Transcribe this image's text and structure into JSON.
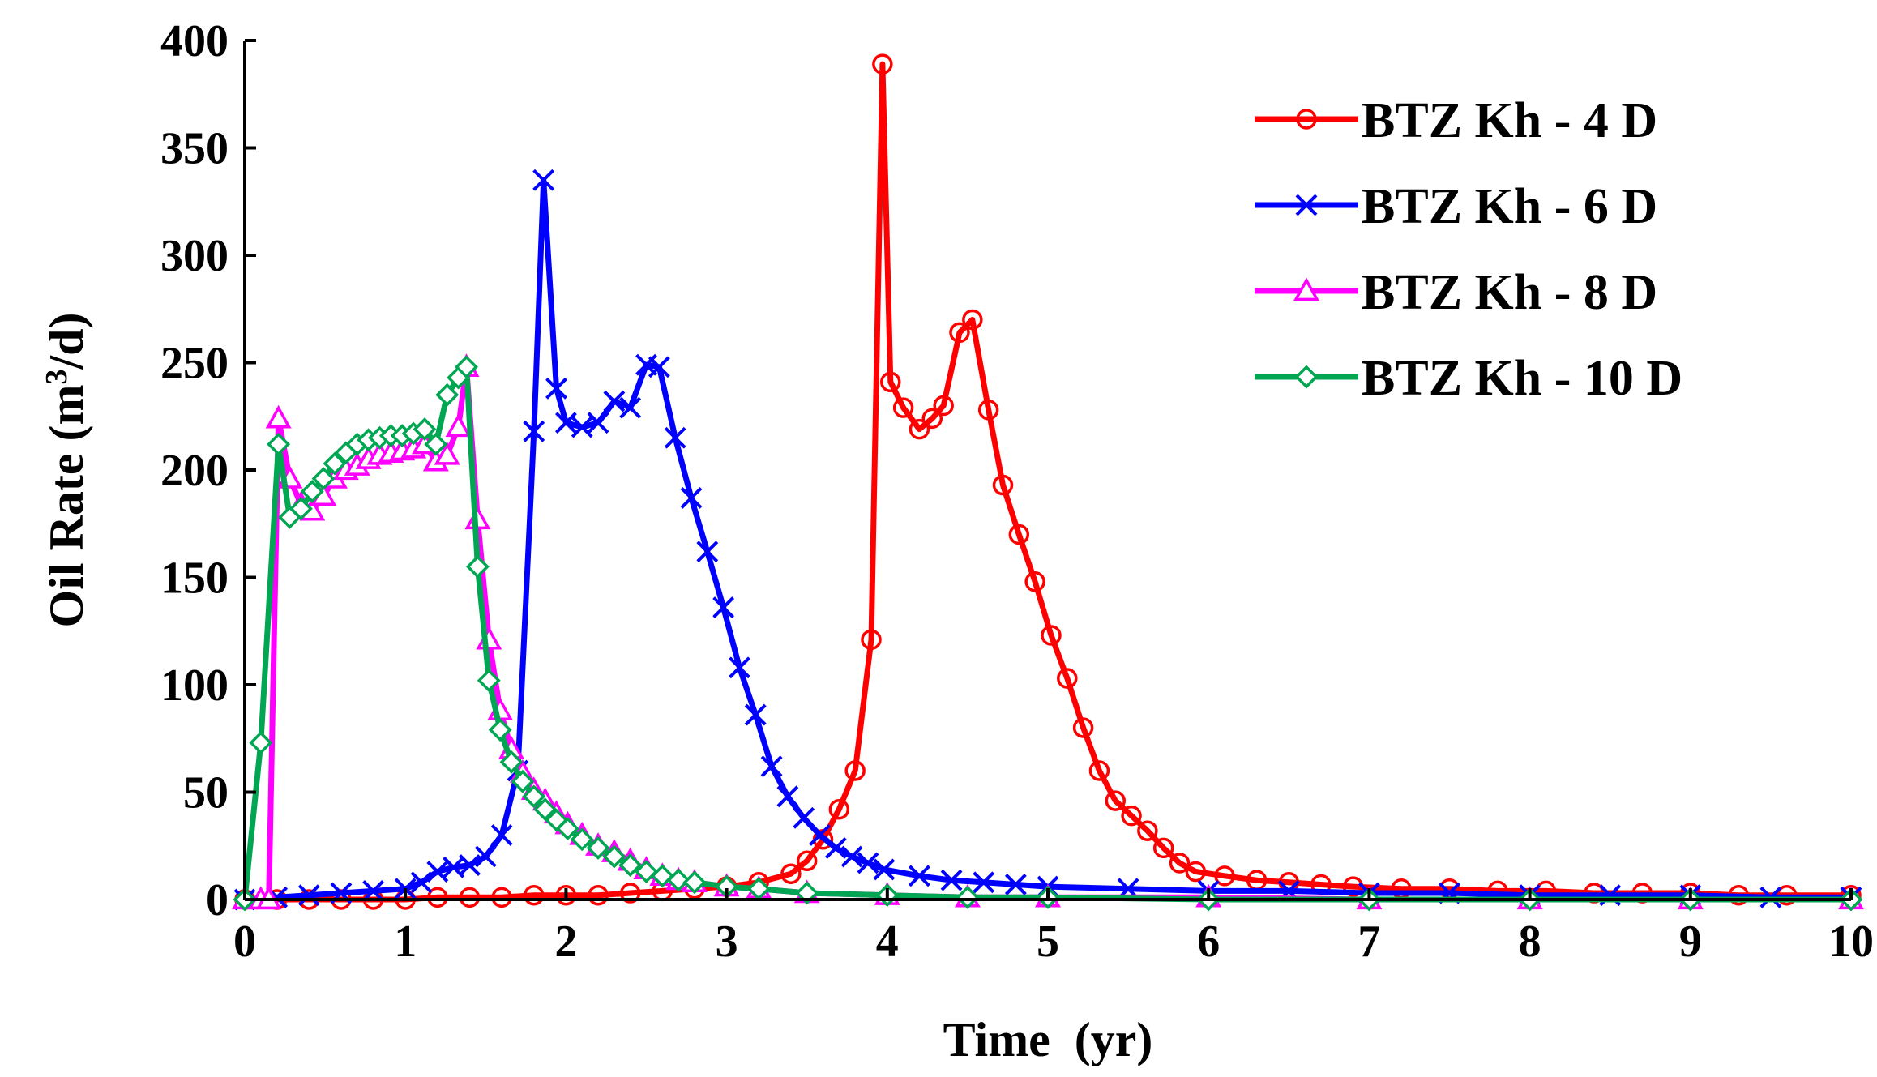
{
  "chart_data": {
    "type": "line",
    "title": "",
    "xlabel": "Time  (yr)",
    "ylabel_main": "Oil Rate (m",
    "ylabel_sup": "3",
    "ylabel_tail": "/d)",
    "xlim": [
      0,
      10
    ],
    "ylim": [
      0,
      400
    ],
    "xticks": [
      "0",
      "1",
      "2",
      "3",
      "4",
      "5",
      "6",
      "7",
      "8",
      "9",
      "10"
    ],
    "yticks": [
      "0",
      "50",
      "100",
      "150",
      "200",
      "250",
      "300",
      "350",
      "400"
    ],
    "grid": false,
    "legend_position": "top-right",
    "series": [
      {
        "name": "BTZ Kh - 4 D",
        "color": "#ff0000",
        "marker": "circle",
        "x": [
          0.0,
          0.2,
          0.4,
          0.6,
          0.8,
          1.0,
          1.2,
          1.4,
          1.6,
          1.8,
          2.0,
          2.2,
          2.4,
          2.6,
          2.8,
          3.0,
          3.2,
          3.4,
          3.5,
          3.6,
          3.7,
          3.8,
          3.9,
          3.97,
          4.02,
          4.1,
          4.2,
          4.28,
          4.35,
          4.45,
          4.53,
          4.63,
          4.72,
          4.82,
          4.92,
          5.02,
          5.12,
          5.22,
          5.32,
          5.42,
          5.52,
          5.62,
          5.72,
          5.82,
          5.92,
          6.1,
          6.3,
          6.5,
          6.7,
          6.9,
          7.2,
          7.5,
          7.8,
          8.1,
          8.4,
          8.7,
          9.0,
          9.3,
          9.6,
          10.0
        ],
        "y": [
          0,
          0,
          0,
          0,
          0,
          0,
          1,
          1,
          1,
          2,
          2,
          2,
          3,
          4,
          5,
          6,
          8,
          12,
          18,
          28,
          42,
          60,
          121,
          389,
          241,
          229,
          219,
          224,
          230,
          264,
          270,
          228,
          193,
          170,
          148,
          123,
          103,
          80,
          60,
          46,
          39,
          32,
          24,
          17,
          13,
          11,
          9,
          8,
          7,
          6,
          5,
          5,
          4,
          4,
          3,
          3,
          3,
          2,
          2,
          2
        ]
      },
      {
        "name": "BTZ Kh - 6 D",
        "color": "#0000ff",
        "marker": "x",
        "x": [
          0.0,
          0.2,
          0.4,
          0.6,
          0.8,
          1.0,
          1.1,
          1.2,
          1.3,
          1.4,
          1.5,
          1.6,
          1.7,
          1.8,
          1.86,
          1.94,
          2.0,
          2.1,
          2.2,
          2.3,
          2.4,
          2.5,
          2.58,
          2.68,
          2.78,
          2.88,
          2.98,
          3.08,
          3.18,
          3.28,
          3.38,
          3.48,
          3.58,
          3.68,
          3.78,
          3.88,
          3.98,
          4.2,
          4.4,
          4.6,
          4.8,
          5.0,
          5.5,
          6.0,
          6.5,
          7.0,
          7.5,
          8.0,
          8.5,
          9.0,
          9.5,
          10.0
        ],
        "y": [
          0,
          1,
          2,
          3,
          4,
          5,
          8,
          13,
          15,
          16,
          20,
          30,
          60,
          218,
          335,
          238,
          222,
          220,
          222,
          232,
          229,
          249,
          248,
          215,
          187,
          162,
          136,
          108,
          86,
          62,
          48,
          38,
          30,
          24,
          20,
          17,
          14,
          11,
          9,
          8,
          7,
          6,
          5,
          4,
          4,
          3,
          3,
          2,
          2,
          2,
          1,
          1
        ]
      },
      {
        "name": "BTZ Kh - 8 D",
        "color": "#ff00ff",
        "marker": "triangle",
        "x": [
          0.0,
          0.1,
          0.15,
          0.21,
          0.28,
          0.35,
          0.42,
          0.49,
          0.56,
          0.63,
          0.7,
          0.77,
          0.84,
          0.91,
          0.98,
          1.05,
          1.12,
          1.19,
          1.26,
          1.33,
          1.38,
          1.45,
          1.52,
          1.59,
          1.66,
          1.73,
          1.8,
          1.87,
          1.94,
          2.01,
          2.1,
          2.2,
          2.3,
          2.4,
          2.5,
          2.6,
          2.7,
          2.8,
          3.0,
          3.2,
          3.5,
          4.0,
          4.5,
          5.0,
          6.0,
          7.0,
          8.0,
          9.0,
          10.0
        ],
        "y": [
          0,
          0,
          0,
          224,
          196,
          184,
          181,
          188,
          196,
          200,
          202,
          205,
          207,
          208,
          209,
          210,
          212,
          204,
          207,
          220,
          248,
          177,
          121,
          88,
          70,
          59,
          51,
          46,
          40,
          35,
          30,
          25,
          22,
          18,
          14,
          11,
          9,
          8,
          6,
          5,
          3,
          2,
          1,
          1,
          1,
          0,
          0,
          0,
          0
        ]
      },
      {
        "name": "BTZ Kh - 10 D",
        "color": "#00a651",
        "marker": "diamond",
        "x": [
          0.0,
          0.1,
          0.21,
          0.28,
          0.35,
          0.42,
          0.49,
          0.56,
          0.63,
          0.7,
          0.77,
          0.84,
          0.91,
          0.98,
          1.05,
          1.12,
          1.19,
          1.26,
          1.33,
          1.38,
          1.45,
          1.52,
          1.59,
          1.66,
          1.73,
          1.8,
          1.87,
          1.94,
          2.01,
          2.1,
          2.2,
          2.3,
          2.4,
          2.5,
          2.6,
          2.7,
          2.8,
          3.0,
          3.2,
          3.5,
          4.0,
          4.5,
          5.0,
          6.0,
          7.0,
          8.0,
          9.0,
          10.0
        ],
        "y": [
          0,
          73,
          212,
          178,
          182,
          190,
          196,
          203,
          208,
          212,
          214,
          215,
          216,
          216,
          217,
          219,
          212,
          235,
          243,
          248,
          155,
          102,
          79,
          64,
          55,
          48,
          42,
          37,
          33,
          28,
          24,
          20,
          16,
          13,
          11,
          9,
          8,
          6,
          5,
          3,
          2,
          1,
          1,
          0,
          0,
          0,
          0,
          0
        ]
      }
    ]
  }
}
